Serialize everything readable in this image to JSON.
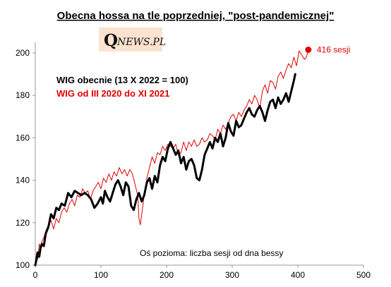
{
  "logo": {
    "q": "Q",
    "rest": "NEWS.PL",
    "background": "#fbe3cf"
  },
  "chart_data": {
    "type": "line",
    "title": "Obecna hossa na tle poprzedniej, \"post-pandemicznej\"",
    "xlabel": "",
    "ylabel": "",
    "xlim": [
      0,
      500
    ],
    "ylim": [
      100,
      205
    ],
    "xticks": [
      "0",
      "100",
      "200",
      "300",
      "400",
      "500"
    ],
    "yticks": [
      "100",
      "120",
      "140",
      "160",
      "180",
      "200"
    ],
    "grid": false,
    "legend_position": "top-left",
    "note": "Oś pozioma: liczba sesji od dna bessy",
    "marker": {
      "x": 416,
      "y": 201.5,
      "label": "416 sesji",
      "color": "#e00000"
    },
    "series": [
      {
        "name": "WIG obecnie (13 X 2022 = 100)",
        "color": "#000000",
        "width": 3,
        "x": [
          0,
          2,
          4,
          6,
          8,
          10,
          13,
          16,
          20,
          24,
          28,
          32,
          36,
          40,
          45,
          50,
          55,
          60,
          65,
          70,
          75,
          80,
          85,
          90,
          95,
          100,
          103,
          106,
          110,
          114,
          118,
          122,
          126,
          130,
          134,
          138,
          142,
          146,
          150,
          154,
          158,
          162,
          166,
          170,
          174,
          178,
          182,
          186,
          190,
          194,
          198,
          202,
          206,
          210,
          214,
          218,
          222,
          226,
          230,
          234,
          238,
          242,
          246,
          250,
          254,
          258,
          262,
          266,
          270,
          274,
          278,
          282,
          286,
          290,
          294,
          298,
          302,
          306,
          310,
          314,
          318,
          322,
          326,
          330,
          334,
          338,
          342,
          346,
          350,
          354,
          358,
          362,
          366,
          370,
          374,
          378,
          382,
          386,
          390,
          394,
          396
        ],
        "values": [
          100,
          103,
          106,
          104,
          108,
          110,
          109,
          115,
          118,
          124,
          122,
          127,
          126,
          129,
          128,
          134,
          132,
          135,
          134,
          133,
          134,
          133,
          131,
          127,
          129,
          132,
          129,
          135,
          132,
          130,
          134,
          138,
          140,
          137,
          133,
          139,
          137,
          128,
          126,
          131,
          134,
          130,
          133,
          139,
          141,
          136,
          142,
          139,
          147,
          151,
          149,
          155,
          158,
          155,
          152,
          154,
          148,
          151,
          145,
          149,
          150,
          147,
          141,
          140,
          145,
          152,
          155,
          158,
          155,
          160,
          158,
          162,
          156,
          160,
          167,
          163,
          161,
          168,
          165,
          166,
          169,
          172,
          174,
          171,
          170,
          173,
          175,
          172,
          168,
          173,
          177,
          178,
          174,
          179,
          176,
          178,
          181,
          177,
          182,
          187,
          190
        ]
      },
      {
        "name": "WIG od III 2020 do XI 2021",
        "color": "#e00000",
        "width": 1,
        "x": [
          0,
          2,
          4,
          6,
          8,
          10,
          13,
          16,
          20,
          24,
          28,
          32,
          36,
          40,
          44,
          48,
          52,
          56,
          60,
          64,
          68,
          72,
          76,
          80,
          84,
          88,
          92,
          96,
          100,
          104,
          108,
          112,
          116,
          120,
          124,
          128,
          132,
          136,
          140,
          144,
          148,
          152,
          156,
          158,
          160,
          163,
          166,
          170,
          174,
          178,
          182,
          186,
          190,
          194,
          198,
          202,
          206,
          210,
          214,
          218,
          222,
          226,
          230,
          234,
          238,
          242,
          246,
          250,
          254,
          258,
          262,
          266,
          270,
          274,
          278,
          282,
          286,
          290,
          294,
          298,
          302,
          306,
          310,
          314,
          318,
          322,
          326,
          330,
          334,
          338,
          342,
          346,
          350,
          354,
          358,
          362,
          366,
          370,
          374,
          378,
          382,
          386,
          390,
          394,
          398,
          402,
          406,
          410,
          413,
          416
        ],
        "values": [
          101,
          106,
          103,
          110,
          108,
          111,
          113,
          116,
          119,
          121,
          117,
          122,
          120,
          125,
          127,
          125,
          129,
          131,
          128,
          133,
          132,
          136,
          134,
          135,
          131,
          135,
          137,
          139,
          136,
          141,
          139,
          143,
          140,
          144,
          142,
          146,
          143,
          145,
          142,
          145,
          143,
          138,
          133,
          122,
          119,
          126,
          133,
          141,
          146,
          151,
          148,
          153,
          152,
          156,
          154,
          157,
          156,
          155,
          157,
          152,
          153,
          158,
          154,
          158,
          156,
          159,
          156,
          157,
          160,
          158,
          159,
          162,
          161,
          159,
          164,
          162,
          166,
          164,
          167,
          170,
          171,
          168,
          172,
          170,
          173,
          175,
          178,
          176,
          180,
          178,
          174,
          182,
          185,
          181,
          187,
          186,
          183,
          189,
          191,
          188,
          192,
          195,
          193,
          198,
          194,
          201,
          199,
          197,
          198,
          201.5
        ]
      }
    ]
  }
}
